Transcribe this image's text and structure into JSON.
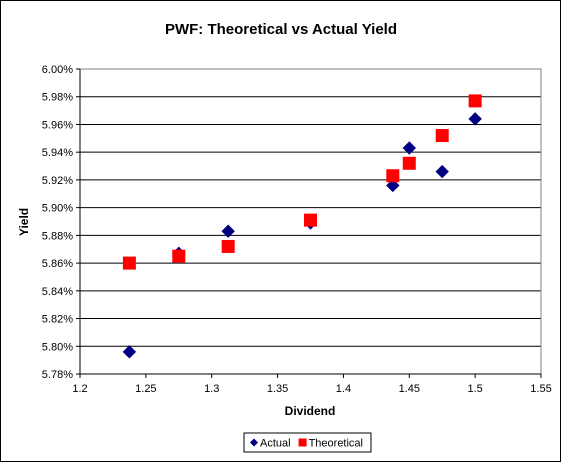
{
  "chart_data": {
    "type": "scatter",
    "title": "PWF: Theoretical vs Actual Yield",
    "xlabel": "Dividend",
    "ylabel": "Yield",
    "xlim": [
      1.2,
      1.55
    ],
    "ylim": [
      5.78,
      6.0
    ],
    "x_ticks": [
      "1.2",
      "1.25",
      "1.3",
      "1.35",
      "1.4",
      "1.45",
      "1.5",
      "1.55"
    ],
    "x_tick_values": [
      1.2,
      1.25,
      1.3,
      1.35,
      1.4,
      1.45,
      1.5,
      1.55
    ],
    "y_ticks": [
      "5.78%",
      "5.80%",
      "5.82%",
      "5.84%",
      "5.86%",
      "5.88%",
      "5.90%",
      "5.92%",
      "5.94%",
      "5.96%",
      "5.98%",
      "6.00%"
    ],
    "y_tick_values": [
      5.78,
      5.8,
      5.82,
      5.84,
      5.86,
      5.88,
      5.9,
      5.92,
      5.94,
      5.96,
      5.98,
      6.0
    ],
    "grid": "horizontal",
    "legend_position": "bottom",
    "plot_background": "#ffffff",
    "series": [
      {
        "name": "Actual",
        "marker": "diamond",
        "color": "#000080",
        "points": [
          {
            "x": 1.2375,
            "y": 5.796
          },
          {
            "x": 1.275,
            "y": 5.867
          },
          {
            "x": 1.3125,
            "y": 5.883
          },
          {
            "x": 1.375,
            "y": 5.889
          },
          {
            "x": 1.4375,
            "y": 5.916
          },
          {
            "x": 1.45,
            "y": 5.943
          },
          {
            "x": 1.475,
            "y": 5.926
          },
          {
            "x": 1.5,
            "y": 5.964
          }
        ]
      },
      {
        "name": "Theoretical",
        "marker": "square",
        "color": "#ff0000",
        "points": [
          {
            "x": 1.2375,
            "y": 5.86
          },
          {
            "x": 1.275,
            "y": 5.865
          },
          {
            "x": 1.3125,
            "y": 5.872
          },
          {
            "x": 1.375,
            "y": 5.891
          },
          {
            "x": 1.4375,
            "y": 5.923
          },
          {
            "x": 1.45,
            "y": 5.932
          },
          {
            "x": 1.475,
            "y": 5.952
          },
          {
            "x": 1.5,
            "y": 5.977
          }
        ]
      }
    ]
  }
}
